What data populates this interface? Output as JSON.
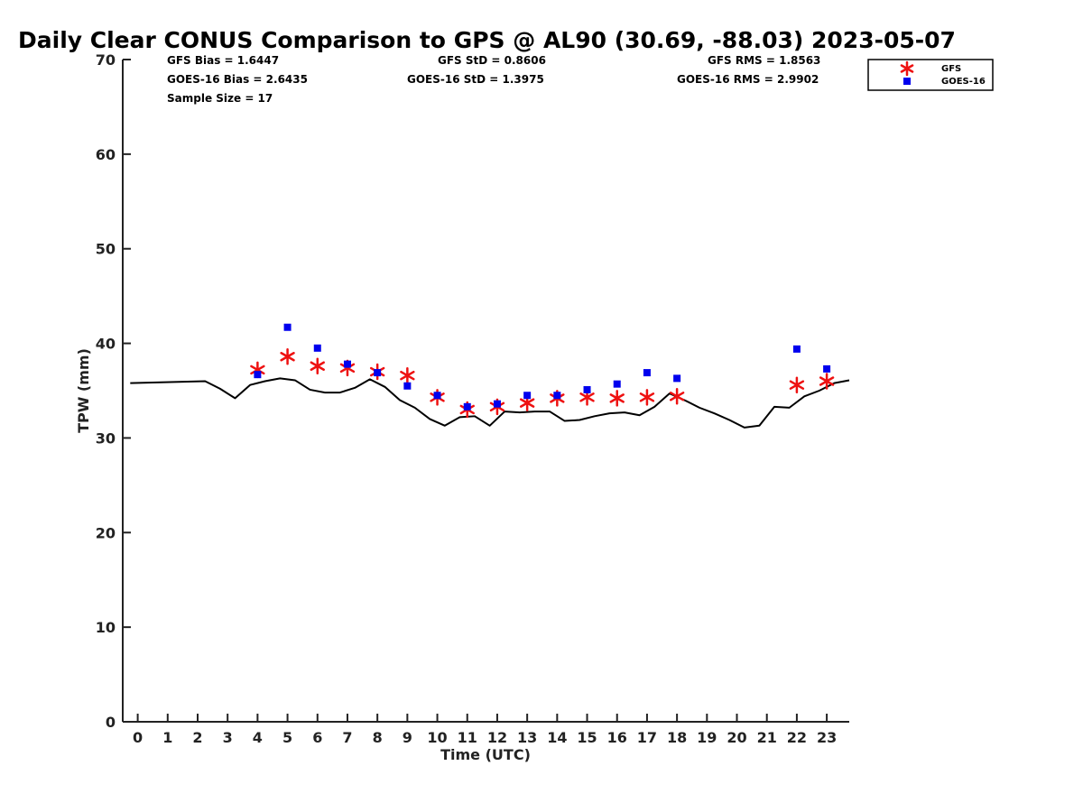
{
  "chart_data": {
    "type": "line",
    "title": "Daily Clear CONUS Comparison to GPS @ AL90 (30.69, -88.03) 2023-05-07",
    "xlabel": "Time (UTC)",
    "ylabel": "TPW (mm)",
    "xlim": [
      -0.5,
      23.75
    ],
    "ylim": [
      0,
      70
    ],
    "x_ticks": [
      0,
      1,
      2,
      3,
      4,
      5,
      6,
      7,
      8,
      9,
      10,
      11,
      12,
      13,
      14,
      15,
      16,
      17,
      18,
      19,
      20,
      21,
      22,
      23
    ],
    "y_ticks": [
      0,
      10,
      20,
      30,
      40,
      50,
      60,
      70
    ],
    "grid": false,
    "legend_position": "top-right",
    "stats": {
      "gfs_bias": "GFS Bias = 1.6447",
      "gfs_std": "GFS StD = 0.8606",
      "gfs_rms": "GFS RMS = 1.8563",
      "goes_bias": "GOES-16 Bias = 2.6435",
      "goes_std": "GOES-16 StD = 1.3975",
      "goes_rms": "GOES-16 RMS = 2.9902",
      "sample_size": "Sample Size = 17"
    },
    "series": [
      {
        "kind": "line",
        "color": "#000000",
        "x": [
          -0.25,
          2.25,
          2.75,
          3.25,
          3.75,
          4.25,
          4.75,
          5.25,
          5.75,
          6.25,
          6.75,
          7.25,
          7.75,
          8.25,
          8.75,
          9.25,
          9.75,
          10.25,
          10.75,
          11.25,
          11.75,
          12.25,
          12.75,
          13.25,
          13.75,
          14.25,
          14.75,
          15.25,
          15.75,
          16.25,
          16.75,
          17.25,
          17.75,
          18.25,
          18.75,
          19.25,
          19.75,
          20.25,
          20.75,
          21.25,
          21.75,
          22.25,
          22.75,
          23.25,
          23.75
        ],
        "values": [
          35.8,
          36.0,
          35.2,
          34.2,
          35.6,
          36.0,
          36.3,
          36.1,
          35.1,
          34.8,
          34.8,
          35.3,
          36.2,
          35.4,
          34.0,
          33.2,
          32.0,
          31.3,
          32.2,
          32.3,
          31.3,
          32.8,
          32.7,
          32.8,
          32.8,
          31.8,
          31.9,
          32.3,
          32.6,
          32.7,
          32.4,
          33.3,
          34.7,
          34.0,
          33.2,
          32.6,
          31.9,
          31.1,
          31.3,
          33.3,
          33.2,
          34.4,
          35.0,
          35.8,
          36.1
        ]
      },
      {
        "name": "GFS",
        "kind": "scatter",
        "marker": "asterisk",
        "color": "#ee1111",
        "x": [
          4,
          5,
          6,
          7,
          8,
          9,
          10,
          11,
          12,
          13,
          14,
          15,
          16,
          17,
          18,
          22,
          23
        ],
        "values": [
          37.2,
          38.6,
          37.6,
          37.4,
          37.0,
          36.6,
          34.3,
          33.0,
          33.3,
          33.7,
          34.2,
          34.3,
          34.2,
          34.3,
          34.4,
          35.6,
          36.0
        ]
      },
      {
        "name": "GOES-16",
        "kind": "scatter",
        "marker": "square",
        "color": "#0000ee",
        "x": [
          4,
          5,
          6,
          7,
          8,
          9,
          10,
          11,
          12,
          13,
          14,
          15,
          16,
          17,
          18,
          22,
          23
        ],
        "values": [
          36.7,
          41.7,
          39.5,
          37.8,
          36.9,
          35.5,
          34.5,
          33.3,
          33.6,
          34.5,
          34.5,
          35.1,
          35.7,
          36.9,
          36.3,
          39.4,
          37.3
        ]
      }
    ]
  }
}
